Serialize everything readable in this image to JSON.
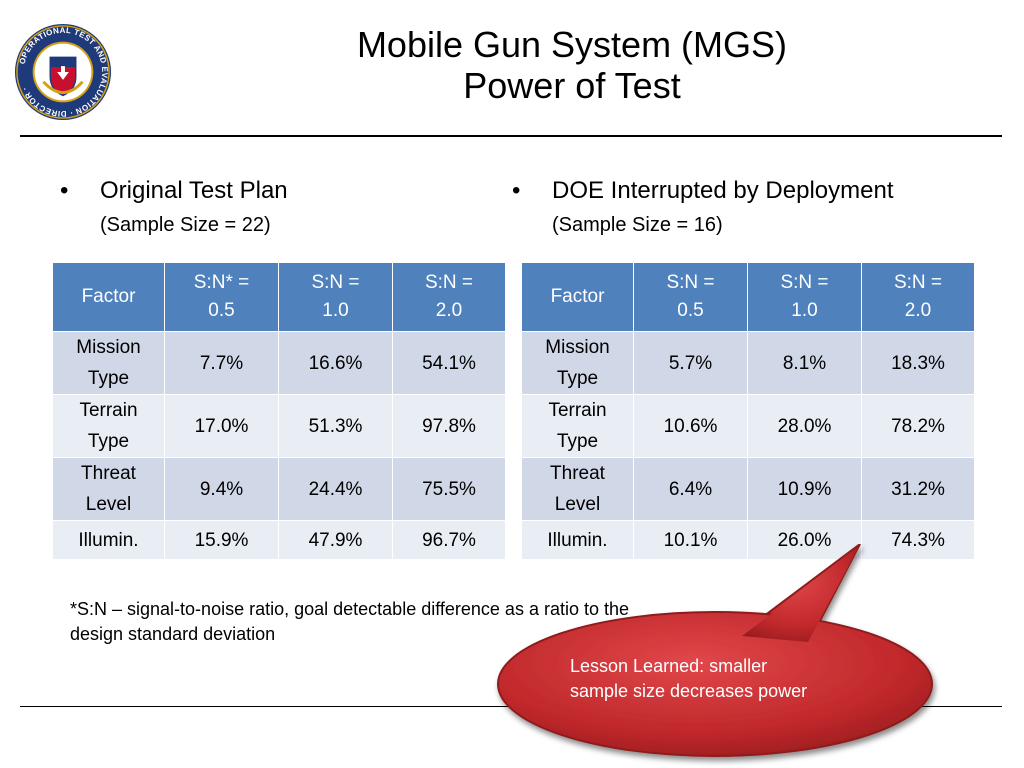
{
  "seal": {
    "ring_text": "OPERATIONAL TEST AND EVALUATION · DIRECTOR ·",
    "colors": {
      "ring": "#1f3a7a",
      "inner": "#ffffff",
      "accent": "#c8102e",
      "gold": "#d4a017"
    }
  },
  "title": {
    "line1": "Mobile Gun System (MGS)",
    "line2": "Power of Test"
  },
  "left": {
    "bullet": "Original Test Plan",
    "sample": "(Sample Size = 22)",
    "headers": [
      "Factor",
      "S:N* =\n0.5",
      "S:N =\n1.0",
      "S:N =\n2.0"
    ],
    "rows": [
      {
        "factor": "Mission\nType",
        "values": [
          "7.7%",
          "16.6%",
          "54.1%"
        ]
      },
      {
        "factor": "Terrain\nType",
        "values": [
          "17.0%",
          "51.3%",
          "97.8%"
        ]
      },
      {
        "factor": "Threat\nLevel",
        "values": [
          "9.4%",
          "24.4%",
          "75.5%"
        ]
      },
      {
        "factor": "Illumin.",
        "values": [
          "15.9%",
          "47.9%",
          "96.7%"
        ]
      }
    ]
  },
  "right": {
    "bullet": "DOE Interrupted by Deployment",
    "sample": "(Sample Size = 16)",
    "headers": [
      "Factor",
      "S:N =\n0.5",
      "S:N =\n1.0",
      "S:N =\n2.0"
    ],
    "rows": [
      {
        "factor": "Mission\nType",
        "values": [
          "5.7%",
          "8.1%",
          "18.3%"
        ]
      },
      {
        "factor": "Terrain\nType",
        "values": [
          "10.6%",
          "28.0%",
          "78.2%"
        ]
      },
      {
        "factor": "Threat\nLevel",
        "values": [
          "6.4%",
          "10.9%",
          "31.2%"
        ]
      },
      {
        "factor": "Illumin.",
        "values": [
          "10.1%",
          "26.0%",
          "74.3%"
        ]
      }
    ]
  },
  "footnote": "*S:N – signal-to-noise ratio, goal detectable difference as a ratio to the design standard deviation",
  "callout": {
    "line1": "Lesson Learned: smaller",
    "line2": "sample size decreases power",
    "color": "#c0282b"
  },
  "colors": {
    "header": "#4f81bd",
    "row_dark": "#d0d8e8",
    "row_light": "#e9edf4"
  }
}
